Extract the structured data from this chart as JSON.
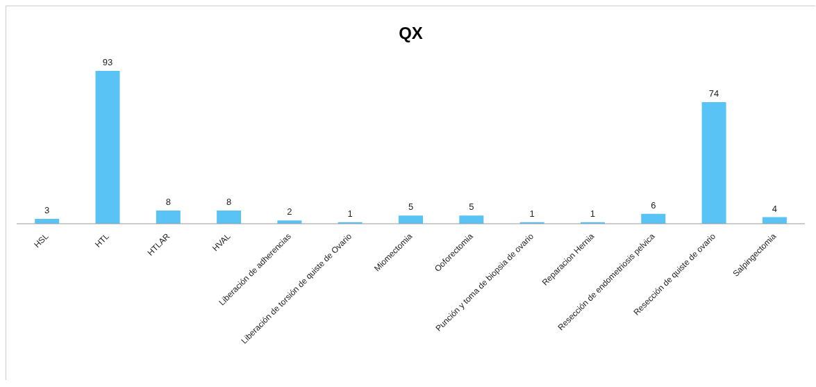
{
  "chart_data": {
    "type": "bar",
    "title": "QX",
    "categories": [
      "HSL",
      "HTL",
      "HTLAR",
      "HVAL",
      "Liberación de adherencias",
      "Liberación de torsión de quiste de Ovario",
      "Miomectomia",
      "Ooforectomia",
      "Punción y toma de biopsia de ovario",
      "Reparacion Hernia",
      "Resección de endometriosis pelvica",
      "Resección de quiste de ovario",
      "Salpingectomia"
    ],
    "values": [
      3,
      93,
      8,
      8,
      2,
      1,
      5,
      5,
      1,
      1,
      6,
      74,
      4
    ],
    "color": "#5ac3f5",
    "data_labels": true,
    "grid": false,
    "legend": false
  }
}
